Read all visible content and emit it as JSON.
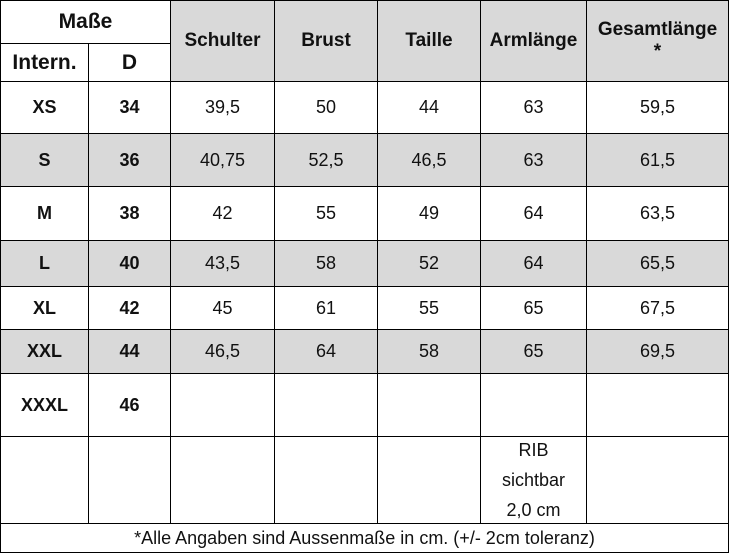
{
  "header": {
    "title": "Maße",
    "sub": [
      "Intern.",
      "D"
    ],
    "columns": [
      "Schulter",
      "Brust",
      "Taille",
      "Armlänge",
      "Gesamtlänge *"
    ]
  },
  "rows": [
    [
      "XS",
      "34",
      "39,5",
      "50",
      "44",
      "63",
      "59,5"
    ],
    [
      "S",
      "36",
      "40,75",
      "52,5",
      "46,5",
      "63",
      "61,5"
    ],
    [
      "M",
      "38",
      "42",
      "55",
      "49",
      "64",
      "63,5"
    ],
    [
      "L",
      "40",
      "43,5",
      "58",
      "52",
      "64",
      "65,5"
    ],
    [
      "XL",
      "42",
      "45",
      "61",
      "55",
      "65",
      "67,5"
    ],
    [
      "XXL",
      "44",
      "46,5",
      "64",
      "58",
      "65",
      "69,5"
    ],
    [
      "XXXL",
      "46"
    ]
  ],
  "note": "RIB sichtbar 2,0 cm",
  "footnote": "*Alle Angaben sind Aussenmaße in cm. (+/- 2cm toleranz)"
}
